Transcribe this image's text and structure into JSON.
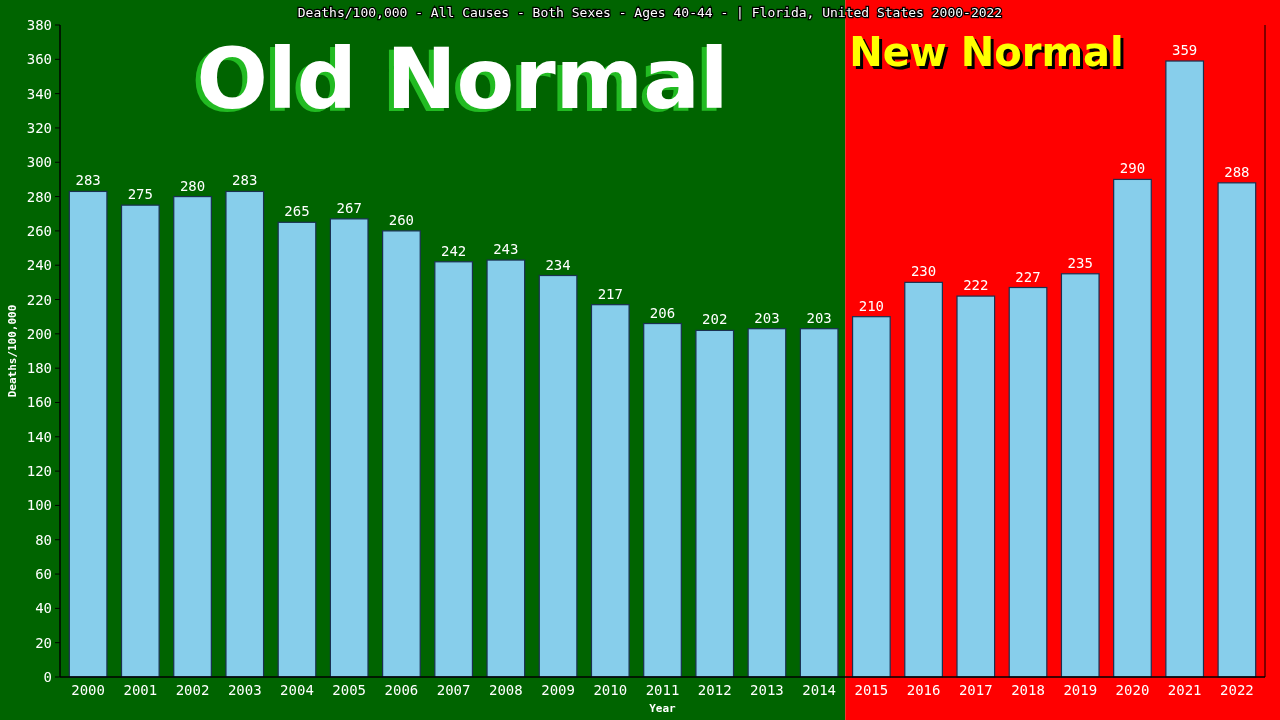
{
  "chart_data": {
    "type": "bar",
    "title": "Deaths/100,000 - All Causes - Both Sexes - Ages 40-44 -  | Florida, United States 2000-2022",
    "xlabel": "Year",
    "ylabel": "Deaths/100,000",
    "categories": [
      "2000",
      "2001",
      "2002",
      "2003",
      "2004",
      "2005",
      "2006",
      "2007",
      "2008",
      "2009",
      "2010",
      "2011",
      "2012",
      "2013",
      "2014",
      "2015",
      "2016",
      "2017",
      "2018",
      "2019",
      "2020",
      "2021",
      "2022"
    ],
    "values": [
      283,
      275,
      280,
      283,
      265,
      267,
      260,
      242,
      243,
      234,
      217,
      206,
      202,
      203,
      203,
      210,
      230,
      222,
      227,
      235,
      290,
      359,
      288
    ],
    "color": "#87ceeb",
    "data_labels": true,
    "ylim": [
      0,
      380
    ],
    "yticks": [
      0,
      20,
      40,
      60,
      80,
      100,
      120,
      140,
      160,
      180,
      200,
      220,
      240,
      260,
      280,
      300,
      320,
      340,
      360,
      380
    ],
    "bands": [
      {
        "axis": "x",
        "from": "2000",
        "to": "2014",
        "label": "Old Normal",
        "color": "#006400"
      },
      {
        "axis": "x",
        "from": "2015",
        "to": "2022",
        "label": "New Normal",
        "color": "#ff0000"
      }
    ]
  }
}
